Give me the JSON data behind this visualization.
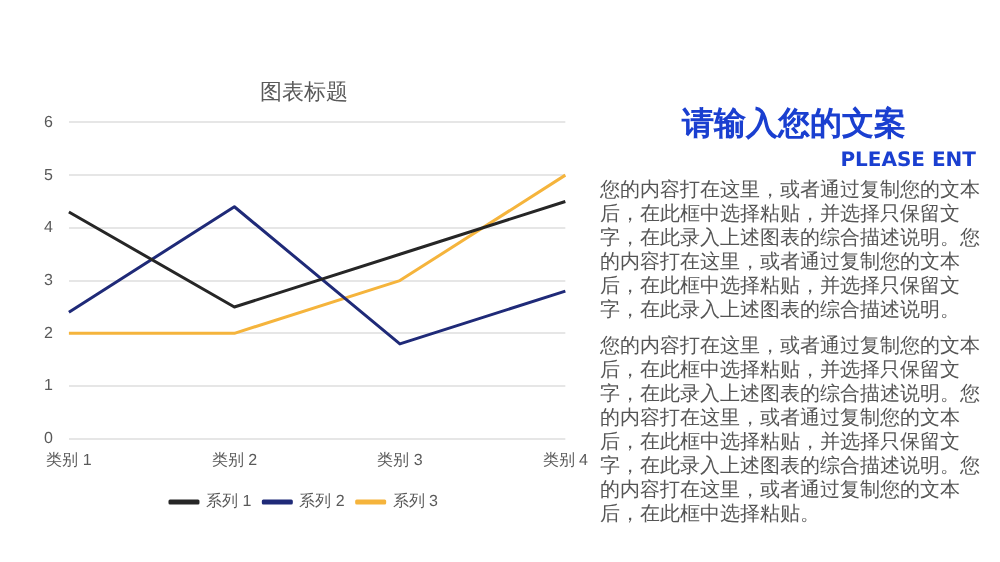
{
  "chart_data": {
    "type": "line",
    "title": "图表标题",
    "categories": [
      "类别 1",
      "类别 2",
      "类别 3",
      "类别 4"
    ],
    "series": [
      {
        "name": "系列 1",
        "color": "#262626",
        "values": [
          4.3,
          2.5,
          3.5,
          4.5
        ]
      },
      {
        "name": "系列 2",
        "color": "#1f2a78",
        "values": [
          2.4,
          4.4,
          1.8,
          2.8
        ]
      },
      {
        "name": "系列 3",
        "color": "#f5b43c",
        "values": [
          2,
          2,
          3,
          5
        ]
      }
    ],
    "ylim": [
      0,
      6
    ],
    "yticks": [
      0,
      1,
      2,
      3,
      4,
      5,
      6
    ],
    "grid": "y",
    "legend": "bottom",
    "marker": "none",
    "line_style": "solid",
    "annotations": [
      "请输入您的文案",
      "PLEASE ENT",
      "您的内容打在这里，或者通过复制您的文本后，在此框中选择粘贴，并选择只保留文字，在此录入上述图表的综合描述说明。您的内容打在这里，或者通过复制您的文本后，在此框中选择粘贴，并选择只保留文字，在此录入上述图表的综合描述说明。",
      "您的内容打在这里，或者通过复制您的文本后，在此框中选择粘贴，并选择只保留文字，在此录入上述图表的综合描述说明。您的内容打在这里，或者通过复制您的文本后，在此框中选择粘贴，并选择只保留文字，在此录入上述图表的综合描述说明。您的内容打在这里，或者通过复制您的文本后，在此框中选择粘贴。"
    ]
  }
}
